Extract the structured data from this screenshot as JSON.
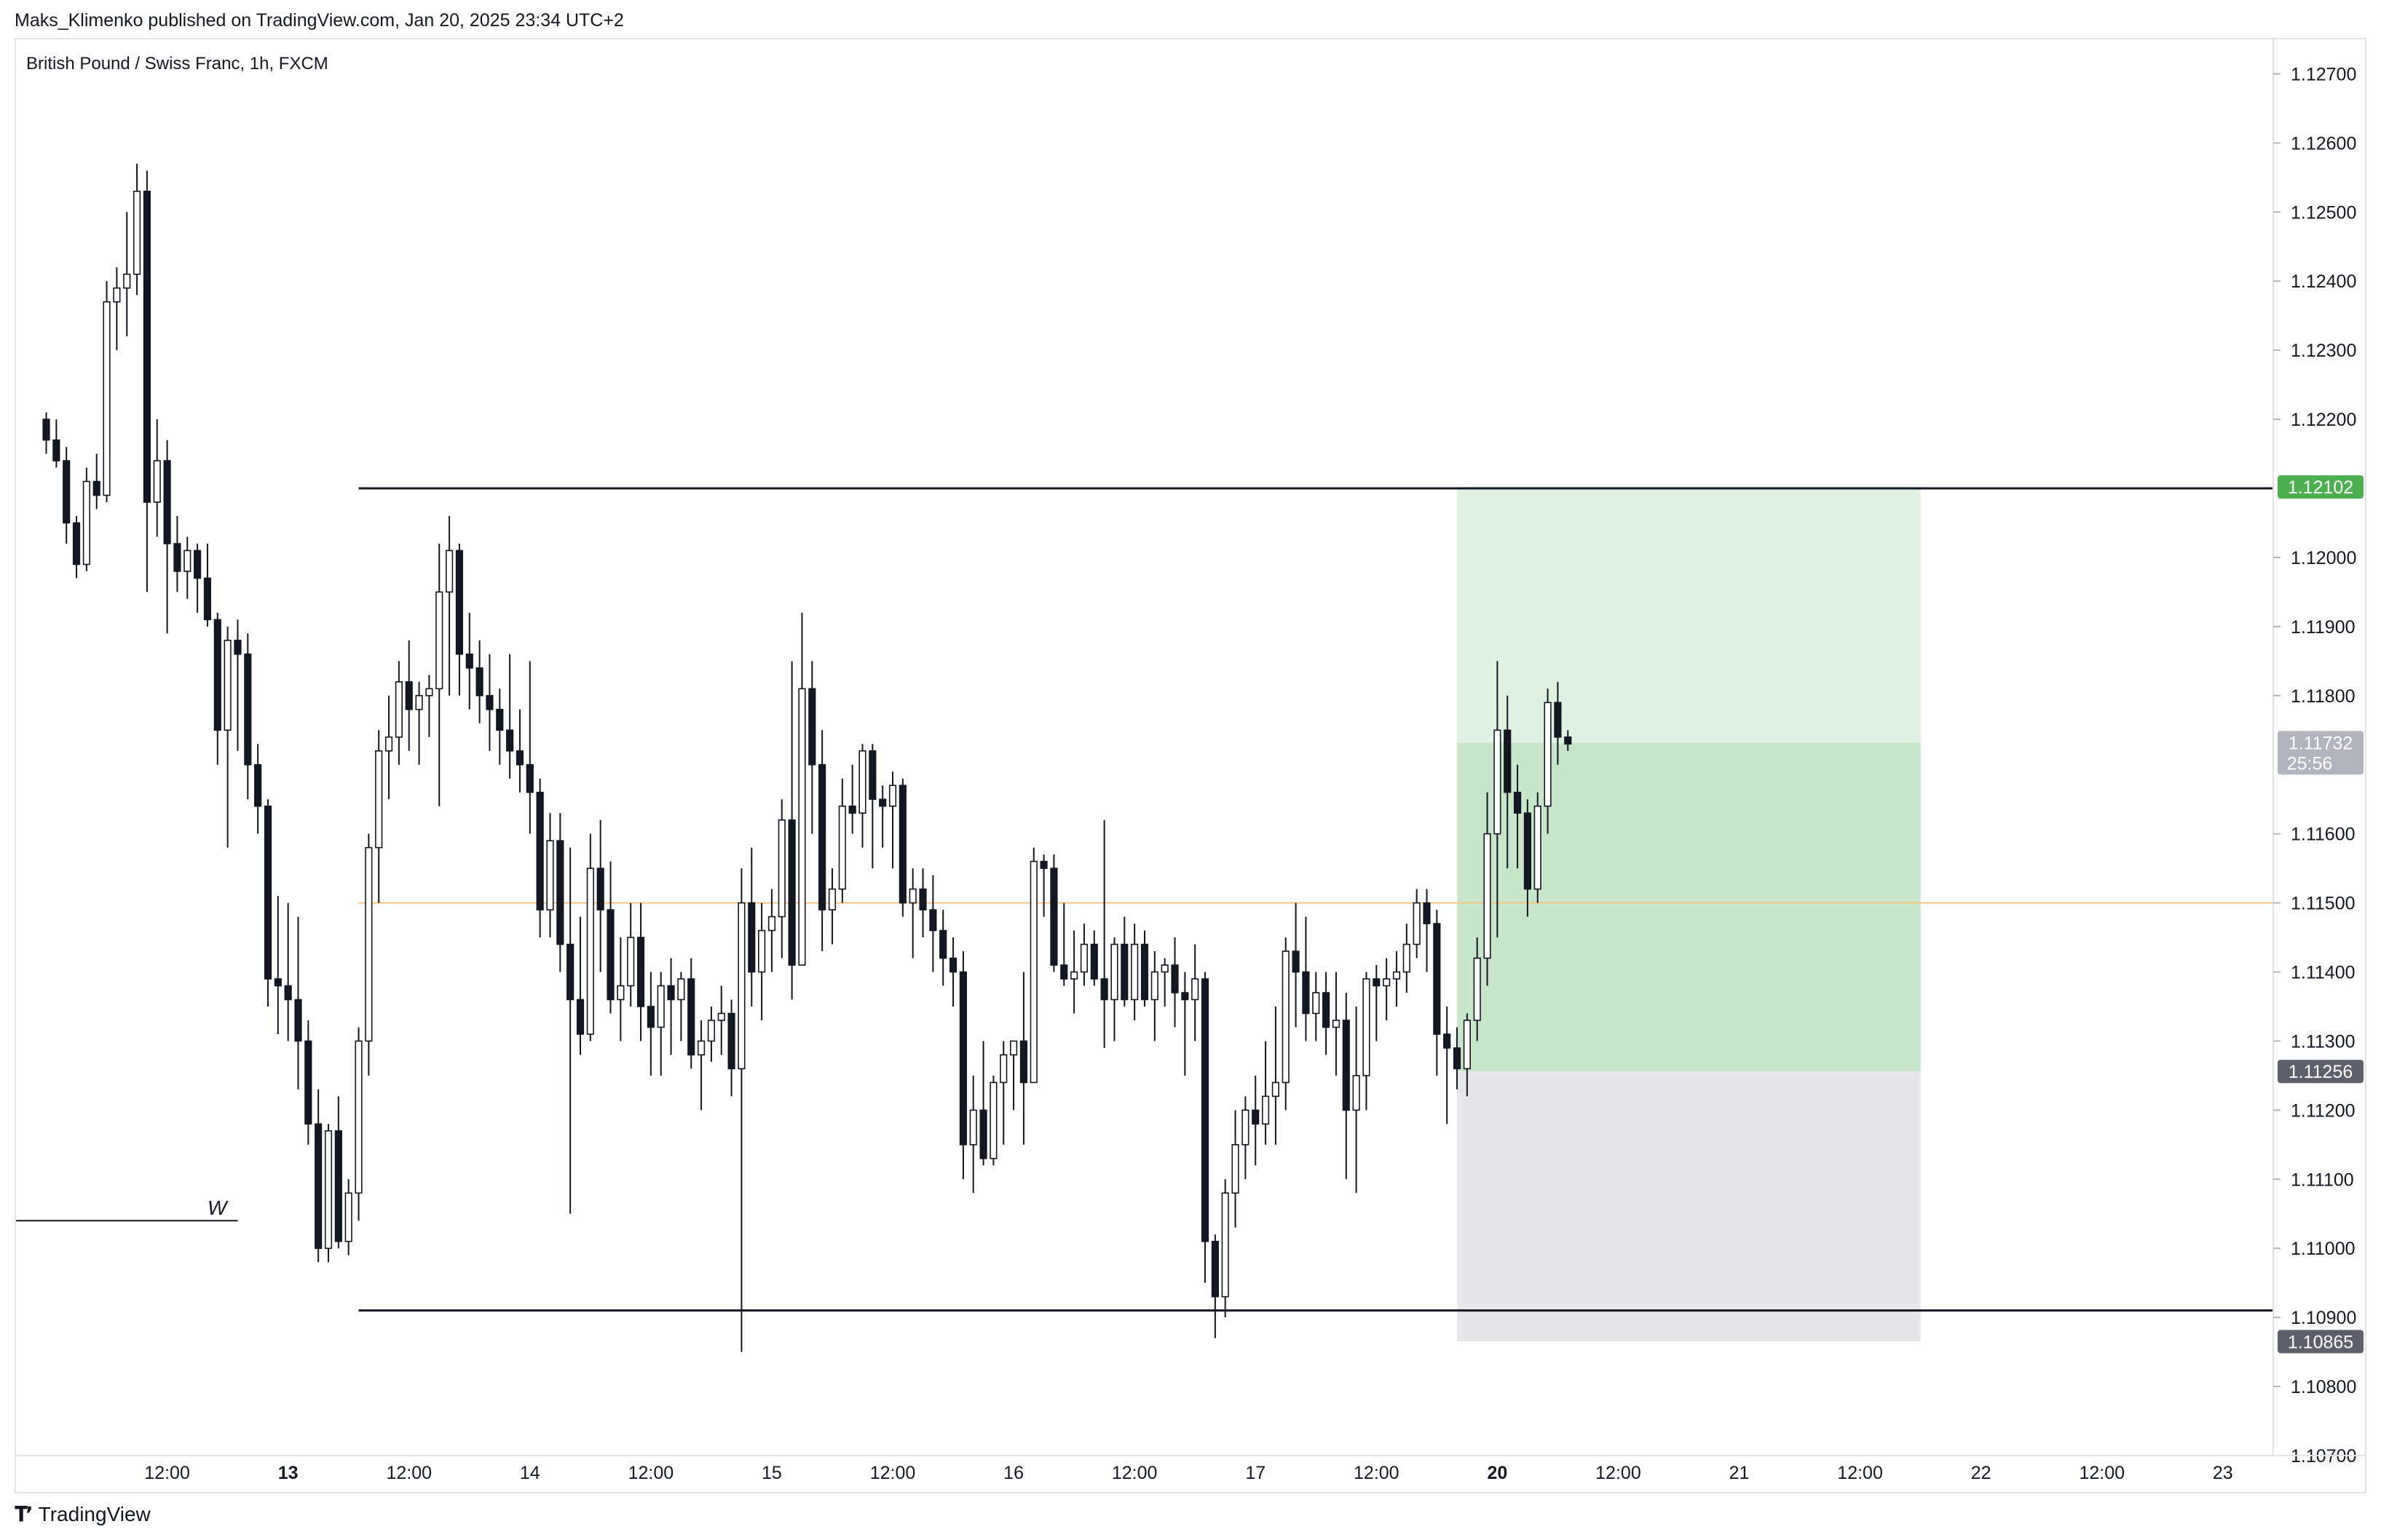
{
  "header": {
    "published_by": "Maks_Klimenko published on TradingView.com, Jan 20, 2025 23:34 UTC+2"
  },
  "symbol_title": "British Pound / Swiss Franc, 1h, FXCM",
  "footer": {
    "logo_icon": "tradingview-logo-icon",
    "brand": "TradingView"
  },
  "colors": {
    "up_fill": "#ffffff",
    "down_fill": "#131722",
    "candle_border": "#131722",
    "target_zone": "#c8e6c9",
    "target_zone_light": "#e0f2e1",
    "stop_zone": "#e6e7ea",
    "green_tag": "#4caf50",
    "last_price_tag": "#b2b5be",
    "gray_tag": "#5d606b",
    "orange_line": "#f5c77e"
  },
  "chart_data": {
    "type": "candlestick",
    "title": "British Pound / Swiss Franc, 1h, FXCM",
    "ylim": [
      1.107,
      1.1275
    ],
    "y_ticks": [
      "1.10700",
      "1.10800",
      "1.10900",
      "1.11000",
      "1.11100",
      "1.11200",
      "1.11300",
      "1.11400",
      "1.11500",
      "1.11600",
      "1.11800",
      "1.11900",
      "1.12000",
      "1.12200",
      "1.12300",
      "1.12400",
      "1.12500",
      "1.12600",
      "1.12700"
    ],
    "x_ticks": [
      {
        "label": "12:00",
        "bar": 12,
        "bold": false
      },
      {
        "label": "13",
        "bar": 24,
        "bold": true
      },
      {
        "label": "12:00",
        "bar": 36,
        "bold": false
      },
      {
        "label": "14",
        "bar": 48,
        "bold": false
      },
      {
        "label": "12:00",
        "bar": 60,
        "bold": false
      },
      {
        "label": "15",
        "bar": 72,
        "bold": false
      },
      {
        "label": "12:00",
        "bar": 84,
        "bold": false
      },
      {
        "label": "16",
        "bar": 96,
        "bold": false
      },
      {
        "label": "12:00",
        "bar": 108,
        "bold": false
      },
      {
        "label": "17",
        "bar": 120,
        "bold": false
      },
      {
        "label": "12:00",
        "bar": 132,
        "bold": false
      },
      {
        "label": "20",
        "bar": 144,
        "bold": true
      },
      {
        "label": "12:00",
        "bar": 156,
        "bold": false
      },
      {
        "label": "21",
        "bar": 168,
        "bold": false
      },
      {
        "label": "12:00",
        "bar": 180,
        "bold": false
      },
      {
        "label": "22",
        "bar": 192,
        "bold": false
      },
      {
        "label": "12:00",
        "bar": 204,
        "bold": false
      },
      {
        "label": "23",
        "bar": 216,
        "bold": false
      }
    ],
    "x_range_bars": [
      -3,
      221
    ],
    "candles": [
      [
        1.122,
        1.1221,
        1.1215,
        1.1217
      ],
      [
        1.1217,
        1.122,
        1.1213,
        1.1214
      ],
      [
        1.1214,
        1.1216,
        1.1202,
        1.1205
      ],
      [
        1.1205,
        1.1206,
        1.1197,
        1.1199
      ],
      [
        1.1199,
        1.1213,
        1.1198,
        1.1211
      ],
      [
        1.1211,
        1.1215,
        1.1207,
        1.1209
      ],
      [
        1.1209,
        1.124,
        1.1208,
        1.1237
      ],
      [
        1.1237,
        1.1242,
        1.123,
        1.1239
      ],
      [
        1.1239,
        1.125,
        1.1232,
        1.1241
      ],
      [
        1.1241,
        1.1257,
        1.1238,
        1.1253
      ],
      [
        1.1253,
        1.1256,
        1.1195,
        1.1208
      ],
      [
        1.1208,
        1.122,
        1.1203,
        1.1214
      ],
      [
        1.1214,
        1.1217,
        1.1189,
        1.1202
      ],
      [
        1.1202,
        1.1206,
        1.1195,
        1.1198
      ],
      [
        1.1198,
        1.1203,
        1.1194,
        1.1201
      ],
      [
        1.1201,
        1.1202,
        1.1192,
        1.1197
      ],
      [
        1.1197,
        1.1202,
        1.119,
        1.1191
      ],
      [
        1.1191,
        1.1192,
        1.117,
        1.1175
      ],
      [
        1.1175,
        1.119,
        1.1158,
        1.1188
      ],
      [
        1.1188,
        1.1191,
        1.1172,
        1.1186
      ],
      [
        1.1186,
        1.1189,
        1.1165,
        1.117
      ],
      [
        1.117,
        1.1173,
        1.116,
        1.1164
      ],
      [
        1.1164,
        1.1165,
        1.1135,
        1.1139
      ],
      [
        1.1139,
        1.1151,
        1.1131,
        1.1138
      ],
      [
        1.1138,
        1.115,
        1.113,
        1.1136
      ],
      [
        1.1136,
        1.1148,
        1.1123,
        1.113
      ],
      [
        1.113,
        1.1133,
        1.1115,
        1.1118
      ],
      [
        1.1118,
        1.1123,
        1.1098,
        1.11
      ],
      [
        1.11,
        1.1118,
        1.1098,
        1.1117
      ],
      [
        1.1117,
        1.1122,
        1.11,
        1.1101
      ],
      [
        1.1101,
        1.111,
        1.1099,
        1.1108
      ],
      [
        1.1108,
        1.1132,
        1.1104,
        1.113
      ],
      [
        1.113,
        1.116,
        1.1125,
        1.1158
      ],
      [
        1.1158,
        1.1175,
        1.115,
        1.1172
      ],
      [
        1.1172,
        1.118,
        1.1165,
        1.1174
      ],
      [
        1.1174,
        1.1185,
        1.117,
        1.1182
      ],
      [
        1.1182,
        1.1188,
        1.1172,
        1.1178
      ],
      [
        1.1178,
        1.1182,
        1.117,
        1.118
      ],
      [
        1.118,
        1.1183,
        1.1174,
        1.1181
      ],
      [
        1.1181,
        1.1202,
        1.1164,
        1.1195
      ],
      [
        1.1195,
        1.1206,
        1.118,
        1.1201
      ],
      [
        1.1201,
        1.1202,
        1.118,
        1.1186
      ],
      [
        1.1186,
        1.1192,
        1.1178,
        1.1184
      ],
      [
        1.1184,
        1.1188,
        1.1176,
        1.118
      ],
      [
        1.118,
        1.1186,
        1.1172,
        1.1178
      ],
      [
        1.1178,
        1.1181,
        1.117,
        1.1175
      ],
      [
        1.1175,
        1.1186,
        1.1168,
        1.1172
      ],
      [
        1.1172,
        1.1178,
        1.1166,
        1.117
      ],
      [
        1.117,
        1.1185,
        1.116,
        1.1166
      ],
      [
        1.1166,
        1.1168,
        1.1145,
        1.1149
      ],
      [
        1.1149,
        1.1163,
        1.1145,
        1.1159
      ],
      [
        1.1159,
        1.1163,
        1.114,
        1.1144
      ],
      [
        1.1144,
        1.1158,
        1.1105,
        1.1136
      ],
      [
        1.1136,
        1.1148,
        1.1128,
        1.1131
      ],
      [
        1.1131,
        1.116,
        1.113,
        1.1155
      ],
      [
        1.1155,
        1.1162,
        1.114,
        1.1149
      ],
      [
        1.1149,
        1.1156,
        1.1134,
        1.1136
      ],
      [
        1.1136,
        1.1145,
        1.113,
        1.1138
      ],
      [
        1.1138,
        1.115,
        1.1135,
        1.1145
      ],
      [
        1.1145,
        1.115,
        1.113,
        1.1135
      ],
      [
        1.1135,
        1.114,
        1.1125,
        1.1132
      ],
      [
        1.1132,
        1.114,
        1.1125,
        1.1138
      ],
      [
        1.1138,
        1.1142,
        1.1128,
        1.1136
      ],
      [
        1.1136,
        1.114,
        1.113,
        1.1139
      ],
      [
        1.1139,
        1.1142,
        1.1126,
        1.1128
      ],
      [
        1.1128,
        1.1133,
        1.112,
        1.113
      ],
      [
        1.113,
        1.1135,
        1.1127,
        1.1133
      ],
      [
        1.1133,
        1.1138,
        1.1128,
        1.1134
      ],
      [
        1.1134,
        1.1136,
        1.1122,
        1.1126
      ],
      [
        1.1126,
        1.1155,
        1.1085,
        1.115
      ],
      [
        1.115,
        1.1158,
        1.1135,
        1.114
      ],
      [
        1.114,
        1.115,
        1.1133,
        1.1146
      ],
      [
        1.1146,
        1.1152,
        1.114,
        1.1148
      ],
      [
        1.1148,
        1.1165,
        1.1142,
        1.1162
      ],
      [
        1.1162,
        1.1185,
        1.1136,
        1.1141
      ],
      [
        1.1141,
        1.1192,
        1.1141,
        1.1181
      ],
      [
        1.1181,
        1.1185,
        1.116,
        1.117
      ],
      [
        1.117,
        1.1175,
        1.1143,
        1.1149
      ],
      [
        1.1149,
        1.1155,
        1.1144,
        1.1152
      ],
      [
        1.1152,
        1.1168,
        1.115,
        1.1164
      ],
      [
        1.1164,
        1.117,
        1.116,
        1.1163
      ],
      [
        1.1163,
        1.1173,
        1.1158,
        1.1172
      ],
      [
        1.1172,
        1.1173,
        1.1155,
        1.1165
      ],
      [
        1.1165,
        1.1167,
        1.1158,
        1.1164
      ],
      [
        1.1164,
        1.1169,
        1.1155,
        1.1167
      ],
      [
        1.1167,
        1.1168,
        1.1148,
        1.115
      ],
      [
        1.115,
        1.1155,
        1.1142,
        1.1152
      ],
      [
        1.1152,
        1.1155,
        1.1145,
        1.1149
      ],
      [
        1.1149,
        1.1154,
        1.114,
        1.1146
      ],
      [
        1.1146,
        1.1149,
        1.1138,
        1.1142
      ],
      [
        1.1142,
        1.1145,
        1.1135,
        1.114
      ],
      [
        1.114,
        1.1143,
        1.111,
        1.1115
      ],
      [
        1.1115,
        1.1125,
        1.1108,
        1.112
      ],
      [
        1.112,
        1.113,
        1.1112,
        1.1113
      ],
      [
        1.1113,
        1.1125,
        1.1112,
        1.1124
      ],
      [
        1.1124,
        1.113,
        1.1115,
        1.1128
      ],
      [
        1.1128,
        1.113,
        1.112,
        1.113
      ],
      [
        1.113,
        1.114,
        1.1115,
        1.1124
      ],
      [
        1.1124,
        1.1158,
        1.1124,
        1.1156
      ],
      [
        1.1156,
        1.1157,
        1.1148,
        1.1155
      ],
      [
        1.1155,
        1.1157,
        1.114,
        1.1141
      ],
      [
        1.1141,
        1.115,
        1.1138,
        1.1139
      ],
      [
        1.1139,
        1.1146,
        1.1134,
        1.114
      ],
      [
        1.114,
        1.1147,
        1.1138,
        1.1144
      ],
      [
        1.1144,
        1.1146,
        1.1138,
        1.1139
      ],
      [
        1.1139,
        1.1162,
        1.1129,
        1.1136
      ],
      [
        1.1136,
        1.1145,
        1.113,
        1.1144
      ],
      [
        1.1144,
        1.1148,
        1.1135,
        1.1136
      ],
      [
        1.1136,
        1.1147,
        1.1133,
        1.1144
      ],
      [
        1.1144,
        1.1146,
        1.1135,
        1.1136
      ],
      [
        1.1136,
        1.1143,
        1.113,
        1.114
      ],
      [
        1.114,
        1.1142,
        1.1135,
        1.1141
      ],
      [
        1.1141,
        1.1145,
        1.1132,
        1.1137
      ],
      [
        1.1137,
        1.114,
        1.1125,
        1.1136
      ],
      [
        1.1136,
        1.1144,
        1.113,
        1.1139
      ],
      [
        1.1139,
        1.114,
        1.1095,
        1.1101
      ],
      [
        1.1101,
        1.1102,
        1.1087,
        1.1093
      ],
      [
        1.1093,
        1.111,
        1.109,
        1.1108
      ],
      [
        1.1108,
        1.112,
        1.1103,
        1.1115
      ],
      [
        1.1115,
        1.1122,
        1.111,
        1.112
      ],
      [
        1.112,
        1.1125,
        1.1112,
        1.1118
      ],
      [
        1.1118,
        1.113,
        1.1115,
        1.1122
      ],
      [
        1.1122,
        1.1135,
        1.1115,
        1.1124
      ],
      [
        1.1124,
        1.1145,
        1.112,
        1.1143
      ],
      [
        1.1143,
        1.115,
        1.1132,
        1.114
      ],
      [
        1.114,
        1.1148,
        1.113,
        1.1134
      ],
      [
        1.1134,
        1.114,
        1.113,
        1.1137
      ],
      [
        1.1137,
        1.114,
        1.1128,
        1.1132
      ],
      [
        1.1132,
        1.114,
        1.1125,
        1.1133
      ],
      [
        1.1133,
        1.1137,
        1.111,
        1.112
      ],
      [
        1.112,
        1.1135,
        1.1108,
        1.1125
      ],
      [
        1.1125,
        1.114,
        1.112,
        1.1139
      ],
      [
        1.1139,
        1.1141,
        1.113,
        1.1138
      ],
      [
        1.1138,
        1.1142,
        1.1133,
        1.1139
      ],
      [
        1.1139,
        1.1143,
        1.1135,
        1.114
      ],
      [
        1.114,
        1.1147,
        1.1137,
        1.1144
      ],
      [
        1.1144,
        1.1152,
        1.1142,
        1.115
      ],
      [
        1.115,
        1.1152,
        1.114,
        1.1147
      ],
      [
        1.1147,
        1.1149,
        1.1125,
        1.1131
      ],
      [
        1.1131,
        1.1135,
        1.1118,
        1.1129
      ],
      [
        1.1129,
        1.1132,
        1.1123,
        1.1126
      ],
      [
        1.1126,
        1.1134,
        1.1122,
        1.1133
      ],
      [
        1.1133,
        1.1145,
        1.113,
        1.1142
      ],
      [
        1.1142,
        1.1166,
        1.1138,
        1.116
      ],
      [
        1.116,
        1.1185,
        1.1145,
        1.1175
      ],
      [
        1.1175,
        1.118,
        1.1155,
        1.1166
      ],
      [
        1.1166,
        1.117,
        1.1155,
        1.1163
      ],
      [
        1.1163,
        1.1165,
        1.1148,
        1.1152
      ],
      [
        1.1152,
        1.1166,
        1.115,
        1.1164
      ],
      [
        1.1164,
        1.1181,
        1.116,
        1.1179
      ],
      [
        1.1179,
        1.1182,
        1.117,
        1.1174
      ],
      [
        1.1174,
        1.1175,
        1.1172,
        1.1173
      ]
    ],
    "horizontal_lines": [
      {
        "price": 1.121,
        "from_bar": 31,
        "color": "#131722",
        "width": 3
      },
      {
        "price": 1.1091,
        "from_bar": 31,
        "color": "#131722",
        "width": 3
      },
      {
        "price": 1.115,
        "from_bar": 31,
        "color": "#f5c77e",
        "width": 2
      }
    ],
    "w_level": {
      "label": "W",
      "price": 1.1104,
      "from_bar": -3,
      "to_bar": 24
    },
    "position": {
      "start_bar": 140,
      "end_bar": 186,
      "target": 1.12102,
      "entry": 1.11732,
      "stop": 1.10865,
      "stop_marker": 1.11256
    },
    "price_tags": [
      {
        "label": "1.12102",
        "price": 1.12102,
        "bg": "#4caf50"
      },
      {
        "label": "1.11732",
        "price": 1.11732,
        "bg": "#b2b5be",
        "sub": "25:56"
      },
      {
        "label": "1.11256",
        "price": 1.11256,
        "bg": "#5d606b"
      },
      {
        "label": "1.10865",
        "price": 1.10865,
        "bg": "#5d606b"
      }
    ]
  }
}
